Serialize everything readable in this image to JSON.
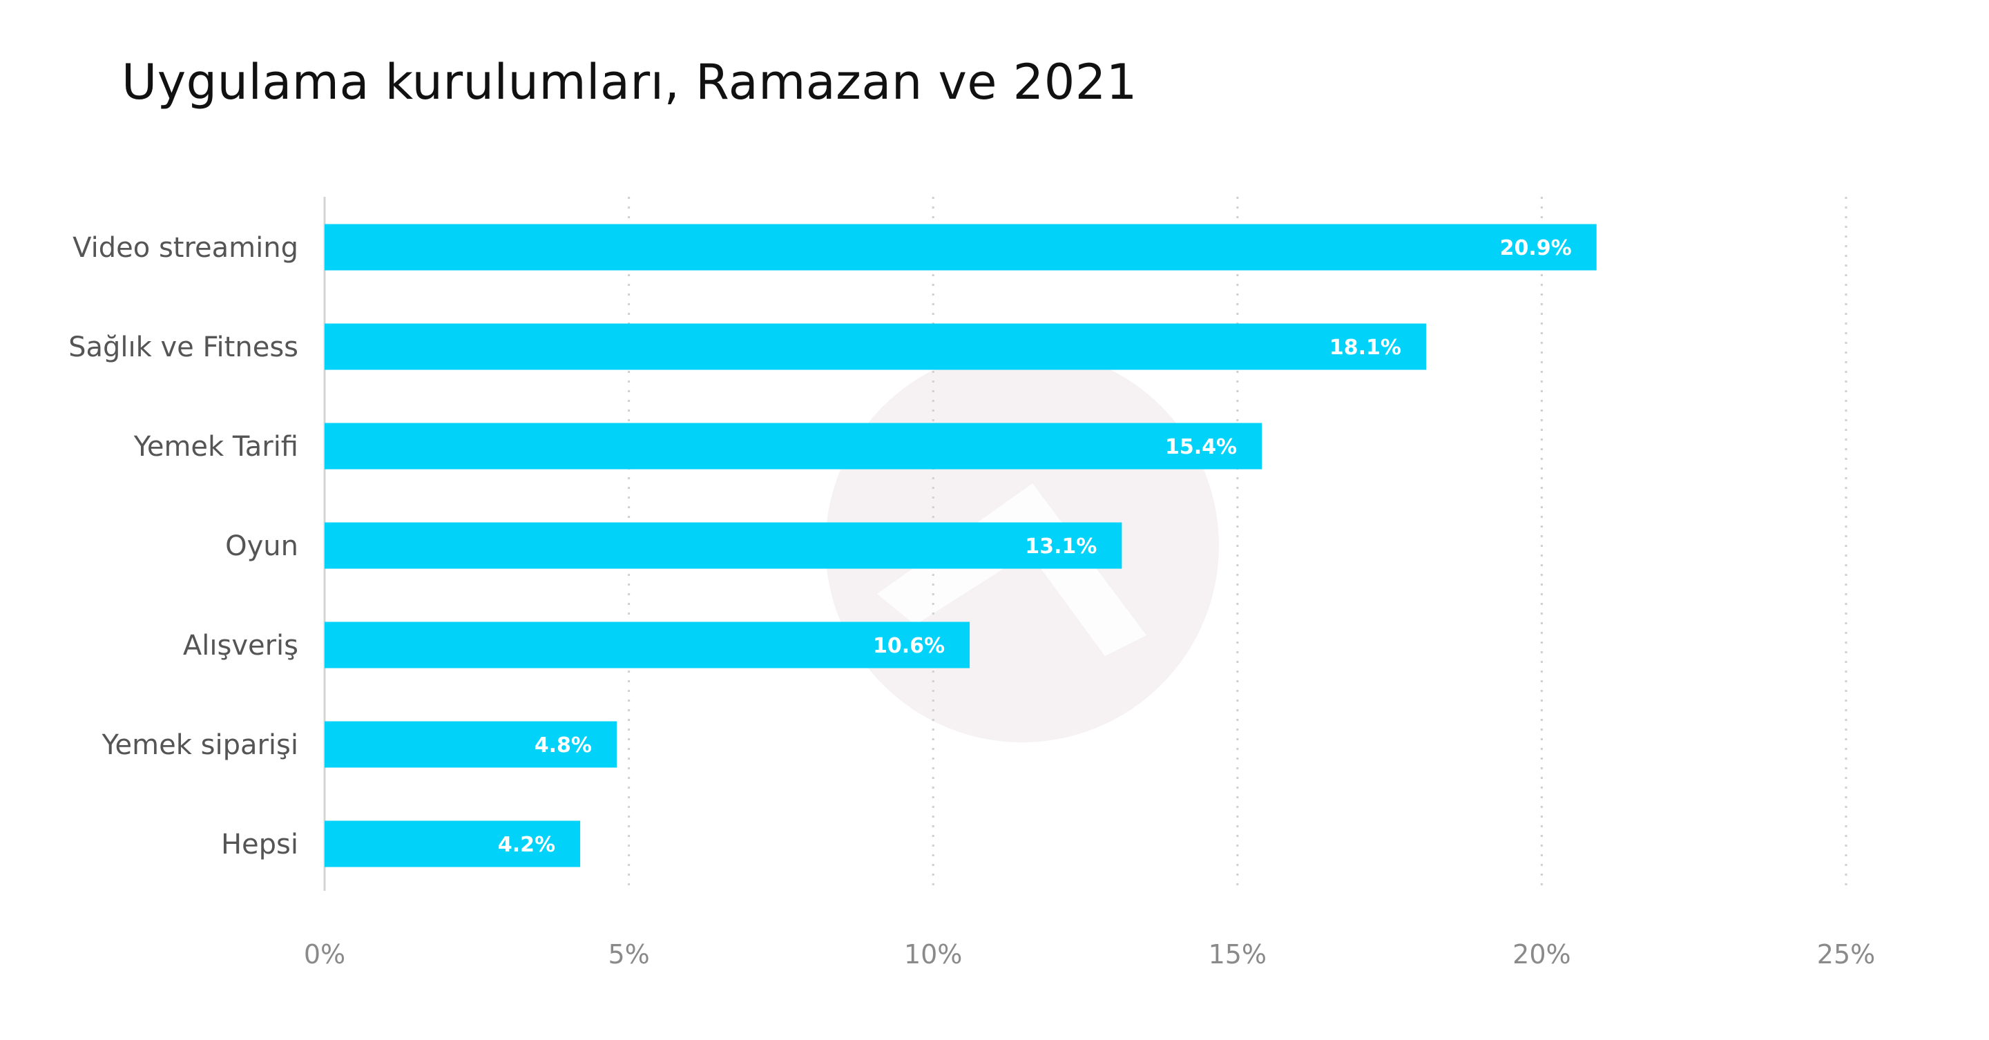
{
  "chart_data": {
    "type": "bar",
    "orientation": "horizontal",
    "title": "Uygulama kurulumları, Ramazan ve 2021",
    "xlabel": "",
    "ylabel": "",
    "categories": [
      "Video streaming",
      "Sağlık ve Fitness",
      "Yemek Tarifi",
      "Oyun",
      "Alışveriş",
      "Yemek siparişi",
      "Hepsi"
    ],
    "values": [
      20.9,
      18.1,
      15.4,
      13.1,
      10.6,
      4.8,
      4.2
    ],
    "value_labels": [
      "20.9%",
      "18.1%",
      "15.4%",
      "13.1%",
      "10.6%",
      "4.8%",
      "4.2%"
    ],
    "xlim": [
      0,
      25
    ],
    "xticks": [
      0,
      5,
      10,
      15,
      20,
      25
    ],
    "xtick_labels": [
      "0%",
      "5%",
      "10%",
      "15%",
      "20%",
      "25%"
    ],
    "grid": "vertical-dotted",
    "legend": "none",
    "bar_color": "#00d2fa"
  },
  "colors": {
    "bar": "#00d2fa",
    "grid": "#cfcfcf",
    "axis": "#d4d4d4",
    "watermark": "#f4f0f1"
  }
}
